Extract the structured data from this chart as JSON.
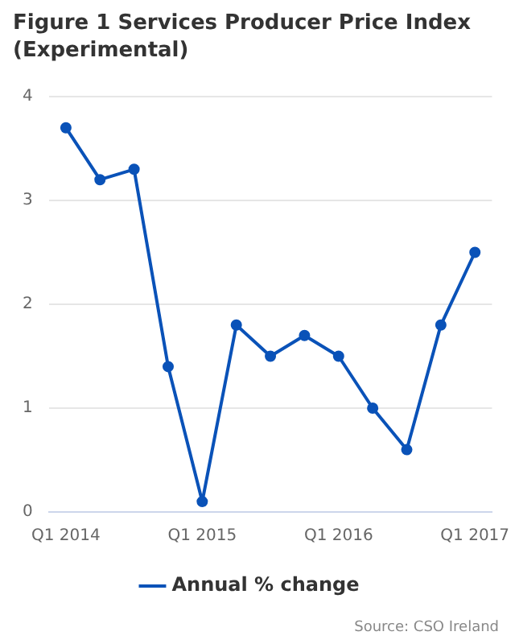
{
  "chart_data": {
    "type": "line",
    "title": "Figure 1 Services Producer Price Index (Experimental)",
    "categories": [
      "Q1 2014",
      null,
      null,
      null,
      "Q1 2015",
      null,
      null,
      null,
      "Q1 2016",
      null,
      null,
      null,
      "Q1 2017"
    ],
    "series": [
      {
        "name": "Annual % change",
        "color": "#0a52b8",
        "values": [
          3.7,
          3.2,
          3.3,
          1.4,
          0.1,
          1.8,
          1.5,
          1.7,
          1.5,
          1.0,
          0.6,
          1.8,
          2.5
        ]
      }
    ],
    "ylim": [
      0,
      4
    ],
    "yticks": [
      0,
      1,
      2,
      3,
      4
    ],
    "grid": "y",
    "legend": "bottom",
    "marker": "circle",
    "annotations": [
      "Source: CSO Ireland"
    ]
  }
}
